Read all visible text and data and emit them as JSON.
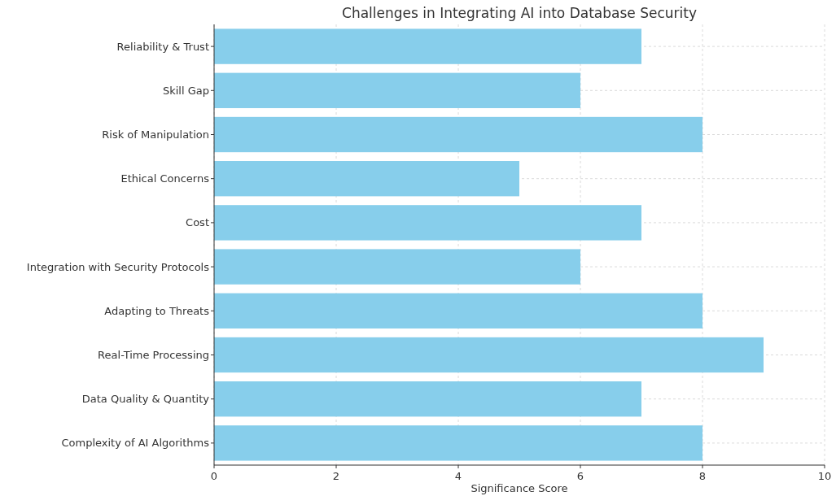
{
  "chart_data": {
    "type": "bar",
    "orientation": "horizontal",
    "title": "Challenges in Integrating AI into Database Security",
    "xlabel": "Significance Score",
    "categories": [
      "Reliability & Trust",
      "Skill Gap",
      "Risk of Manipulation",
      "Ethical Concerns",
      "Cost",
      "Integration with Security Protocols",
      "Adapting to Threats",
      "Real-Time Processing",
      "Data Quality & Quantity",
      "Complexity of AI Algorithms"
    ],
    "values": [
      7,
      6,
      8,
      5,
      7,
      6,
      8,
      9,
      7,
      8
    ],
    "color": "#87ceeb",
    "xlim": [
      0,
      10
    ],
    "xticks": [
      0,
      2,
      4,
      6,
      8,
      10
    ],
    "grid": true
  }
}
